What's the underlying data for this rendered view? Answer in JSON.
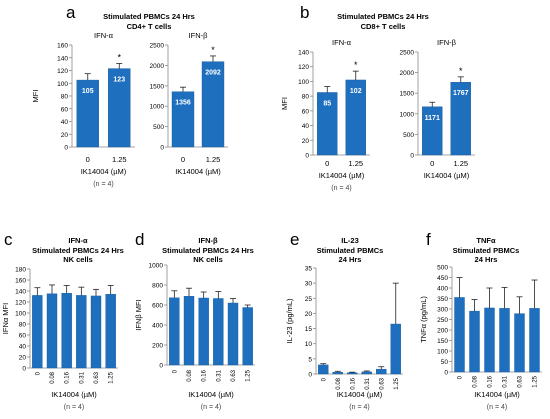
{
  "panels": {
    "a": {
      "letter": "a",
      "title1": "Stimulated PBMCs 24 Hrs",
      "title2": "CD4+ T cells",
      "n": "(n = 4)"
    },
    "b": {
      "letter": "b",
      "title1": "Stimulated PBMCs 24 Hrs",
      "title2": "CD8+ T cells",
      "n": "(n = 4)"
    },
    "c": {
      "letter": "c",
      "title1": "IFN-α",
      "title2": "Stimulated PBMCs 24 Hrs",
      "title3": "NK cells",
      "n": "(n = 4)"
    },
    "d": {
      "letter": "d",
      "title1": "IFN-β",
      "title2": "Stimulated PBMCs 24 Hrs",
      "title3": "NK cells",
      "n": "(n = 4)"
    },
    "e": {
      "letter": "e",
      "title1": "IL-23",
      "title2": "Stimulated PBMCs",
      "title3": "24 Hrs",
      "n": "(n = 4)"
    },
    "f": {
      "letter": "f",
      "title1": "TNFα",
      "title2": "Stimulated PBMCs",
      "title3": "24 Hrs",
      "n": "(n = 4)"
    }
  },
  "colors": {
    "bar": "#1f6fbf",
    "bar_edge": "#165a9c",
    "axis": "#8a8a8a",
    "text": "#000000",
    "bar_label": "#ffffff"
  },
  "chart_data": [
    {
      "id": "a1",
      "type": "bar",
      "title": "IFN-α",
      "categories": [
        "0",
        "1.25"
      ],
      "values": [
        105,
        123
      ],
      "errors": [
        10,
        8
      ],
      "data_labels": [
        "105",
        "123"
      ],
      "significance": [
        "",
        "*"
      ],
      "ylabel": "MFI",
      "ylim": [
        0,
        160
      ],
      "ticks": [
        0,
        20,
        40,
        60,
        80,
        100,
        120,
        140,
        160
      ],
      "xlabel": "IK14004 (µM)"
    },
    {
      "id": "a2",
      "type": "bar",
      "title": "IFN-β",
      "categories": [
        "0",
        "1.25"
      ],
      "values": [
        1356,
        2092
      ],
      "errors": [
        110,
        140
      ],
      "data_labels": [
        "1356",
        "2092"
      ],
      "significance": [
        "",
        "*"
      ],
      "ylabel": "",
      "ylim": [
        0,
        2500
      ],
      "ticks": [
        0,
        500,
        1000,
        1500,
        2000,
        2500
      ],
      "xlabel": "IK14004 (µM)"
    },
    {
      "id": "b1",
      "type": "bar",
      "title": "IFN-α",
      "categories": [
        "0",
        "1.25"
      ],
      "values": [
        85,
        102
      ],
      "errors": [
        8,
        12
      ],
      "data_labels": [
        "85",
        "102"
      ],
      "significance": [
        "",
        "*"
      ],
      "ylabel": "MFI",
      "ylim": [
        0,
        140
      ],
      "ticks": [
        0,
        20,
        40,
        60,
        80,
        100,
        120,
        140
      ],
      "xlabel": "IK14004 (µM)"
    },
    {
      "id": "b2",
      "type": "bar",
      "title": "IFN-β",
      "categories": [
        "0",
        "1.25"
      ],
      "values": [
        1171,
        1767
      ],
      "errors": [
        110,
        130
      ],
      "data_labels": [
        "1171",
        "1767"
      ],
      "significance": [
        "",
        "*"
      ],
      "ylabel": "",
      "ylim": [
        0,
        2500
      ],
      "ticks": [
        0,
        500,
        1000,
        1500,
        2000,
        2500
      ],
      "xlabel": "IK14004 (µM)"
    },
    {
      "id": "c",
      "type": "bar",
      "categories": [
        "0",
        "0.08",
        "0.16",
        "0.31",
        "0.63",
        "1.25"
      ],
      "values": [
        132,
        135,
        136,
        132,
        131,
        134
      ],
      "errors": [
        14,
        16,
        14,
        15,
        12,
        16
      ],
      "ylabel": "IFNα MFI",
      "ylim": [
        0,
        180
      ],
      "ticks": [
        0,
        20,
        40,
        60,
        80,
        100,
        120,
        140,
        160,
        180
      ],
      "xlabel": "IK14004 (µM)"
    },
    {
      "id": "d",
      "type": "bar",
      "categories": [
        "0",
        "0.08",
        "0.16",
        "0.31",
        "0.63",
        "1.25"
      ],
      "values": [
        672,
        688,
        670,
        665,
        620,
        575
      ],
      "errors": [
        70,
        80,
        60,
        70,
        45,
        25
      ],
      "ylabel": "IFNβ MFI",
      "ylim": [
        0,
        1000
      ],
      "ticks": [
        0,
        200,
        400,
        600,
        800,
        1000
      ],
      "xlabel": "IK14004 (µM)"
    },
    {
      "id": "e",
      "type": "bar",
      "categories": [
        "0",
        "0.08",
        "0.16",
        "0.31",
        "0.63",
        "1.25"
      ],
      "values": [
        3,
        0.6,
        0.4,
        0.7,
        1.6,
        16.5
      ],
      "errors": [
        0.4,
        0.3,
        0.2,
        0.3,
        0.8,
        13.5
      ],
      "ylabel": "IL-23 (pg/mL)",
      "ylim": [
        0,
        35
      ],
      "ticks": [
        0,
        5,
        10,
        15,
        20,
        25,
        30,
        35
      ],
      "xlabel": "IK14004 (µM)"
    },
    {
      "id": "f",
      "type": "bar",
      "categories": [
        "0",
        "0.08",
        "0.16",
        "0.31",
        "0.63",
        "1.25"
      ],
      "values": [
        355,
        290,
        305,
        303,
        278,
        303
      ],
      "errors": [
        95,
        55,
        95,
        100,
        80,
        135
      ],
      "ylabel": "TNFα (pg/mL)",
      "ylim": [
        0,
        500
      ],
      "ticks": [
        0,
        50,
        100,
        150,
        200,
        250,
        300,
        350,
        400,
        450,
        500
      ],
      "xlabel": "IK14004 (µM)"
    }
  ]
}
